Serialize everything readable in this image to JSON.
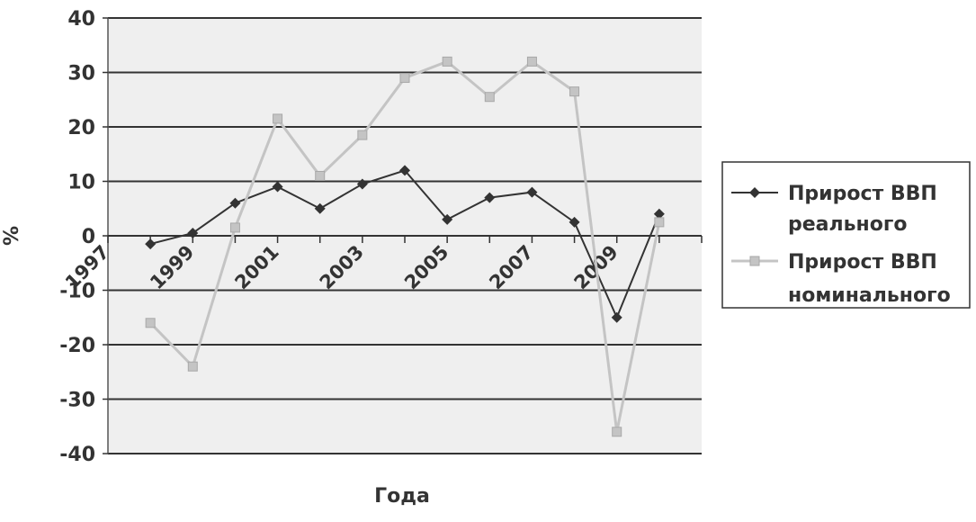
{
  "chart_data": {
    "type": "line",
    "xlabel": "Года",
    "ylabel": "%",
    "ylim": [
      -40,
      40
    ],
    "yticks": [
      40,
      30,
      20,
      10,
      0,
      -10,
      -20,
      -30,
      -40
    ],
    "x": [
      1997,
      1998,
      1999,
      2000,
      2001,
      2002,
      2003,
      2004,
      2005,
      2006,
      2007,
      2008,
      2009,
      2010,
      2011
    ],
    "xtick_labels": [
      "1997",
      "1999",
      "2001",
      "2003",
      "2005",
      "2007",
      "2009"
    ],
    "xtick_label_years": [
      1997,
      1999,
      2001,
      2003,
      2005,
      2007,
      2009
    ],
    "grid": true,
    "legend_position": "right",
    "series": [
      {
        "name": "Прирост ВВП реального",
        "legend_lines": [
          "Прирост ВВП",
          "реального"
        ],
        "color": "#333333",
        "marker": "diamond",
        "points": [
          [
            1998,
            -1.5
          ],
          [
            1999,
            0.5
          ],
          [
            2000,
            6
          ],
          [
            2001,
            9
          ],
          [
            2002,
            5
          ],
          [
            2003,
            9.5
          ],
          [
            2004,
            12
          ],
          [
            2005,
            3
          ],
          [
            2006,
            7
          ],
          [
            2007,
            8
          ],
          [
            2008,
            2.5
          ],
          [
            2009,
            -15
          ],
          [
            2010,
            4
          ]
        ]
      },
      {
        "name": "Прирост ВВП номинального",
        "legend_lines": [
          "Прирост ВВП",
          "номинального"
        ],
        "color": "#c4c4c4",
        "marker": "square",
        "points": [
          [
            1998,
            -16
          ],
          [
            1999,
            -24
          ],
          [
            2000,
            1.5
          ],
          [
            2001,
            21.5
          ],
          [
            2002,
            11
          ],
          [
            2003,
            18.5
          ],
          [
            2004,
            29
          ],
          [
            2005,
            32
          ],
          [
            2006,
            25.5
          ],
          [
            2007,
            32
          ],
          [
            2008,
            26.5
          ],
          [
            2009,
            -36
          ],
          [
            2010,
            2.5
          ]
        ]
      }
    ]
  }
}
